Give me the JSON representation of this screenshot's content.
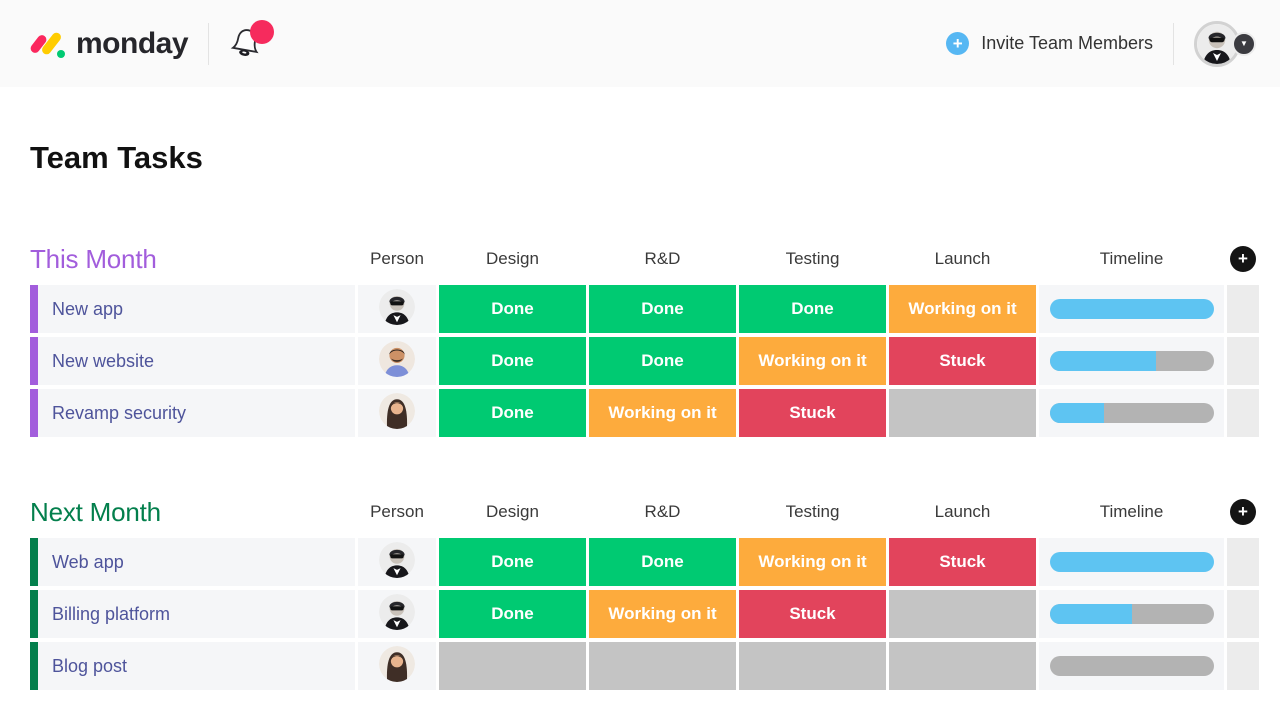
{
  "header": {
    "logo_text": "monday",
    "invite_label": "Invite Team Members"
  },
  "page_title": "Team Tasks",
  "columns": [
    "Person",
    "Design",
    "R&D",
    "Testing",
    "Launch",
    "Timeline"
  ],
  "status_defs": {
    "done": {
      "label": "Done",
      "color": "#00ca72"
    },
    "working": {
      "label": "Working on it",
      "color": "#fdab3d"
    },
    "stuck": {
      "label": "Stuck",
      "color": "#e2445c"
    },
    "empty": {
      "label": "",
      "color": "#c4c4c4"
    }
  },
  "groups": [
    {
      "title": "This Month",
      "color": "#a25ddc",
      "rows": [
        {
          "task": "New app",
          "avatar": "man-sunglasses",
          "statuses": [
            "done",
            "done",
            "done",
            "working"
          ],
          "timeline_pct": 100
        },
        {
          "task": "New website",
          "avatar": "man",
          "statuses": [
            "done",
            "done",
            "working",
            "stuck"
          ],
          "timeline_pct": 65
        },
        {
          "task": "Revamp security",
          "avatar": "woman",
          "statuses": [
            "done",
            "working",
            "stuck",
            "empty"
          ],
          "timeline_pct": 33
        }
      ]
    },
    {
      "title": "Next Month",
      "color": "#037f4c",
      "rows": [
        {
          "task": "Web app",
          "avatar": "man-sunglasses",
          "statuses": [
            "done",
            "done",
            "working",
            "stuck"
          ],
          "timeline_pct": 100
        },
        {
          "task": "Billing platform",
          "avatar": "man-sunglasses",
          "statuses": [
            "done",
            "working",
            "stuck",
            "empty"
          ],
          "timeline_pct": 50
        },
        {
          "task": "Blog post",
          "avatar": "woman",
          "statuses": [
            "empty",
            "empty",
            "empty",
            "empty"
          ],
          "timeline_pct": 0
        }
      ]
    }
  ],
  "colors": {
    "timeline_fill": "#5ec4f2",
    "timeline_track": "#b3b3b3",
    "row_bg": "#f5f6f8",
    "spacer_cell_bg": "#ececec",
    "invite_accent": "#56b7f3",
    "notification_dot": "#f62b5d",
    "task_text": "#4e549b"
  }
}
